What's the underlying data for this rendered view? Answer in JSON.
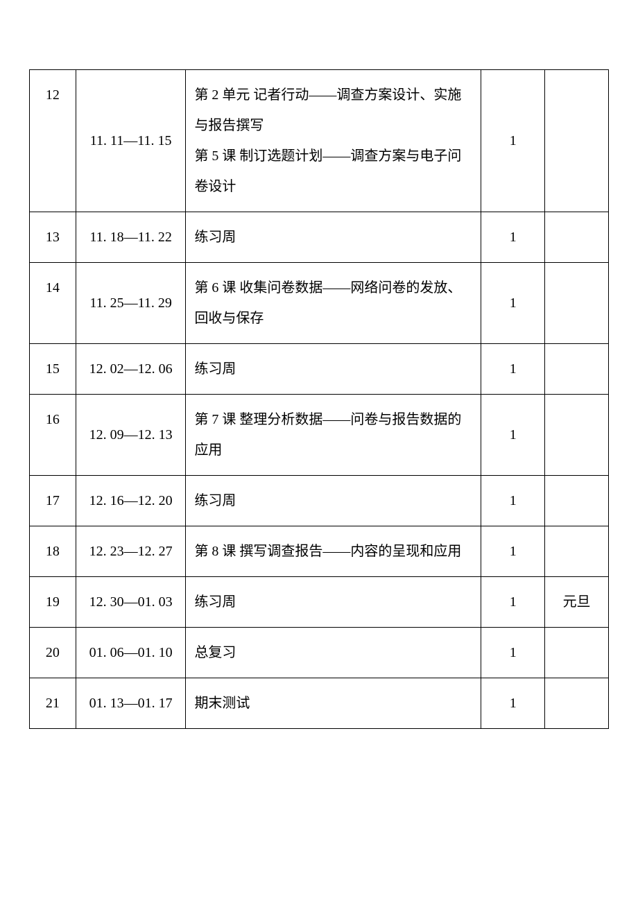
{
  "table": {
    "border_color": "#000000",
    "background_color": "#ffffff",
    "font_size": 20,
    "columns": [
      {
        "width_pct": 8,
        "align": "center"
      },
      {
        "width_pct": 19,
        "align": "center"
      },
      {
        "width_pct": 51,
        "align": "left"
      },
      {
        "width_pct": 11,
        "align": "center"
      },
      {
        "width_pct": 11,
        "align": "center"
      }
    ],
    "rows": [
      {
        "week": "12",
        "dates": "11. 11—11. 15",
        "content": "第 2 单元 记者行动——调查方案设计、实施与报告撰写\n第 5 课 制订选题计划——调查方案与电子问卷设计",
        "hours": "1",
        "note": ""
      },
      {
        "week": "13",
        "dates": "11. 18—11. 22",
        "content": "练习周",
        "hours": "1",
        "note": ""
      },
      {
        "week": "14",
        "dates": "11. 25—11. 29",
        "content": "第 6 课 收集问卷数据——网络问卷的发放、回收与保存",
        "hours": "1",
        "note": ""
      },
      {
        "week": "15",
        "dates": "12. 02—12. 06",
        "content": "练习周",
        "hours": "1",
        "note": ""
      },
      {
        "week": "16",
        "dates": "12. 09—12. 13",
        "content": "第 7 课 整理分析数据——问卷与报告数据的应用",
        "hours": "1",
        "note": ""
      },
      {
        "week": "17",
        "dates": "12. 16—12. 20",
        "content": "练习周",
        "hours": "1",
        "note": ""
      },
      {
        "week": "18",
        "dates": "12. 23—12. 27",
        "content": "第 8 课 撰写调查报告——内容的呈现和应用",
        "hours": "1",
        "note": ""
      },
      {
        "week": "19",
        "dates": "12. 30—01. 03",
        "content": "练习周",
        "hours": "1",
        "note": "元旦"
      },
      {
        "week": "20",
        "dates": "01. 06—01. 10",
        "content": "总复习",
        "hours": "1",
        "note": ""
      },
      {
        "week": "21",
        "dates": "01. 13—01. 17",
        "content": "期末测试",
        "hours": "1",
        "note": ""
      }
    ]
  }
}
